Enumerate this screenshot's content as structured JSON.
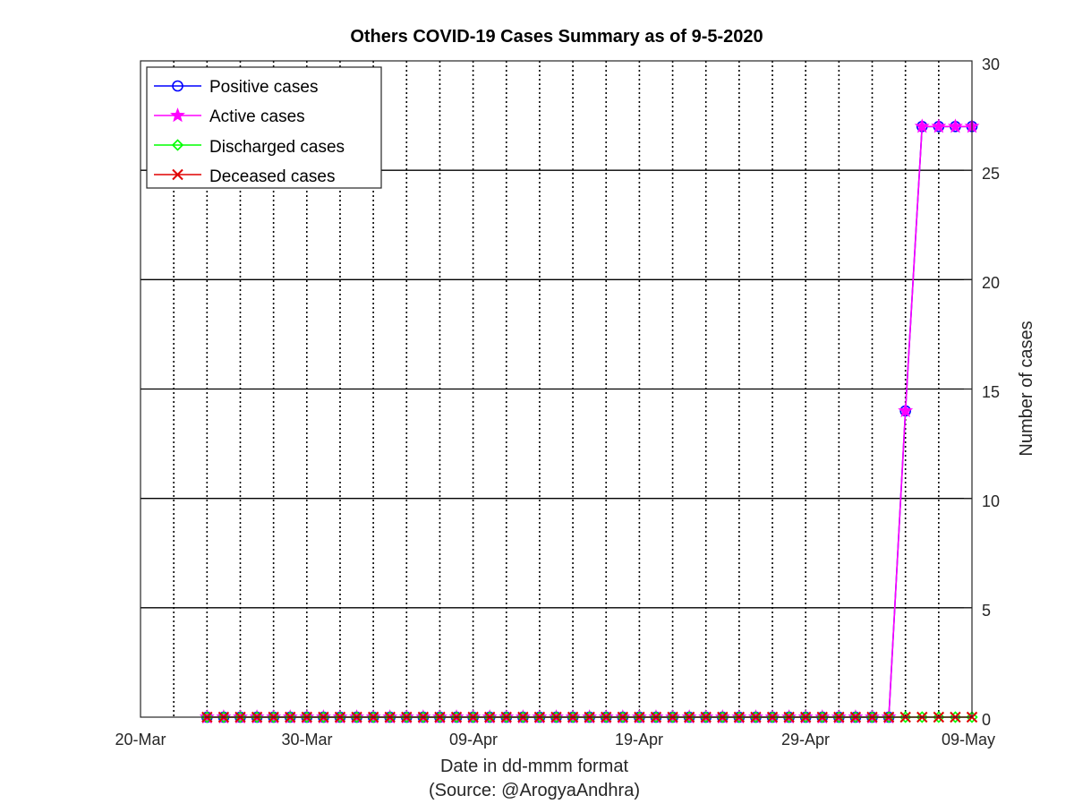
{
  "chart_data": {
    "type": "line",
    "title": "Others COVID-19 Cases Summary as of 9-5-2020",
    "xlabel": "Date in dd-mmm format",
    "xlabel2": "(Source: @ArogyaAndhra)",
    "ylabel": "Number of cases",
    "x_ticks": [
      "20-Mar",
      "30-Mar",
      "09-Apr",
      "19-Apr",
      "29-Apr",
      "09-May"
    ],
    "y_ticks": [
      "0",
      "5",
      "10",
      "15",
      "20",
      "25",
      "30"
    ],
    "xlim": [
      "2020-03-20",
      "2020-05-09"
    ],
    "ylim": [
      0,
      30
    ],
    "grid": "on",
    "legend_position": "top-left",
    "x": [
      "2020-03-24",
      "2020-03-25",
      "2020-03-26",
      "2020-03-27",
      "2020-03-28",
      "2020-03-29",
      "2020-03-30",
      "2020-03-31",
      "2020-04-01",
      "2020-04-02",
      "2020-04-03",
      "2020-04-04",
      "2020-04-05",
      "2020-04-06",
      "2020-04-07",
      "2020-04-08",
      "2020-04-09",
      "2020-04-10",
      "2020-04-11",
      "2020-04-12",
      "2020-04-13",
      "2020-04-14",
      "2020-04-15",
      "2020-04-16",
      "2020-04-17",
      "2020-04-18",
      "2020-04-19",
      "2020-04-20",
      "2020-04-21",
      "2020-04-22",
      "2020-04-23",
      "2020-04-24",
      "2020-04-25",
      "2020-04-26",
      "2020-04-27",
      "2020-04-28",
      "2020-04-29",
      "2020-04-30",
      "2020-05-01",
      "2020-05-02",
      "2020-05-03",
      "2020-05-04",
      "2020-05-05",
      "2020-05-06",
      "2020-05-07",
      "2020-05-08",
      "2020-05-09"
    ],
    "series": [
      {
        "name": "Positive cases",
        "color": "#0000ff",
        "marker": "circle",
        "values": [
          0,
          0,
          0,
          0,
          0,
          0,
          0,
          0,
          0,
          0,
          0,
          0,
          0,
          0,
          0,
          0,
          0,
          0,
          0,
          0,
          0,
          0,
          0,
          0,
          0,
          0,
          0,
          0,
          0,
          0,
          0,
          0,
          0,
          0,
          0,
          0,
          0,
          0,
          0,
          0,
          0,
          0,
          14,
          27,
          27,
          27,
          27
        ]
      },
      {
        "name": "Active cases",
        "color": "#ff00ff",
        "marker": "star",
        "values": [
          0,
          0,
          0,
          0,
          0,
          0,
          0,
          0,
          0,
          0,
          0,
          0,
          0,
          0,
          0,
          0,
          0,
          0,
          0,
          0,
          0,
          0,
          0,
          0,
          0,
          0,
          0,
          0,
          0,
          0,
          0,
          0,
          0,
          0,
          0,
          0,
          0,
          0,
          0,
          0,
          0,
          0,
          14,
          27,
          27,
          27,
          27
        ]
      },
      {
        "name": "Discharged cases",
        "color": "#00ff00",
        "marker": "diamond",
        "values": [
          0,
          0,
          0,
          0,
          0,
          0,
          0,
          0,
          0,
          0,
          0,
          0,
          0,
          0,
          0,
          0,
          0,
          0,
          0,
          0,
          0,
          0,
          0,
          0,
          0,
          0,
          0,
          0,
          0,
          0,
          0,
          0,
          0,
          0,
          0,
          0,
          0,
          0,
          0,
          0,
          0,
          0,
          0,
          0,
          0,
          0,
          0
        ]
      },
      {
        "name": "Deceased cases",
        "color": "#e00000",
        "marker": "x",
        "values": [
          0,
          0,
          0,
          0,
          0,
          0,
          0,
          0,
          0,
          0,
          0,
          0,
          0,
          0,
          0,
          0,
          0,
          0,
          0,
          0,
          0,
          0,
          0,
          0,
          0,
          0,
          0,
          0,
          0,
          0,
          0,
          0,
          0,
          0,
          0,
          0,
          0,
          0,
          0,
          0,
          0,
          0,
          0,
          0,
          0,
          0,
          0
        ]
      }
    ]
  }
}
